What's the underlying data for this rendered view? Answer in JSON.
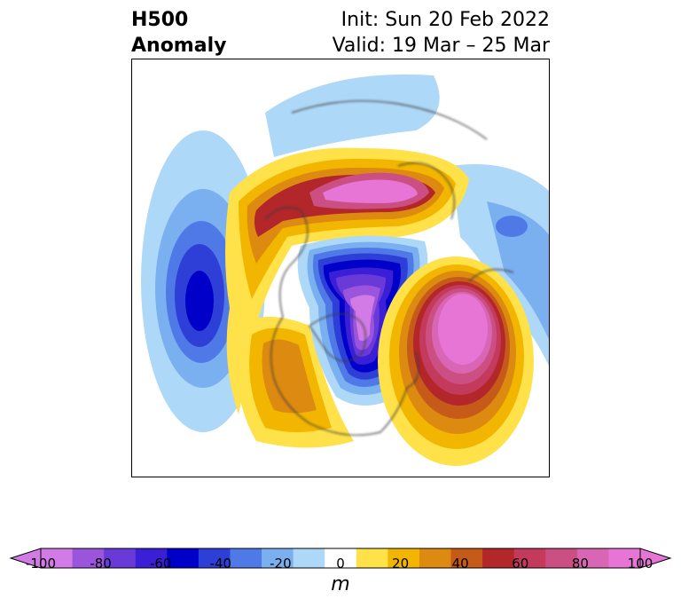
{
  "title": {
    "left_line1": "H500",
    "left_line2": "Anomaly",
    "right_line1": "Init: Sun 20 Feb 2022",
    "right_line2": "Valid: 19 Mar – 25 Mar"
  },
  "colorbar": {
    "unit": "m",
    "ticks": [
      "-100",
      "-80",
      "-60",
      "-40",
      "-20",
      "0",
      "20",
      "40",
      "60",
      "80",
      "100"
    ],
    "levels": [
      -100,
      -90,
      -80,
      -70,
      -60,
      -50,
      -40,
      -30,
      -20,
      -10,
      10,
      20,
      30,
      40,
      50,
      60,
      70,
      80,
      90,
      100
    ],
    "colors": [
      "#d27ae6",
      "#9b55dc",
      "#6a3ad9",
      "#3a1fd6",
      "#0000c8",
      "#2e3fd8",
      "#4f79e6",
      "#7bb0f0",
      "#aed8f8",
      "#ffffff",
      "#ffe14a",
      "#f2b600",
      "#dd8a10",
      "#c65a18",
      "#b3262a",
      "#c43a5c",
      "#cc4f84",
      "#d966b4",
      "#e675d6"
    ]
  },
  "map": {
    "projection": "polar-stereographic",
    "anomalies": [
      {
        "region": "north-pacific-low",
        "sign": "negative",
        "peak": -70
      },
      {
        "region": "alaska-ridge",
        "sign": "positive",
        "peak": 90
      },
      {
        "region": "canada-trough",
        "sign": "negative",
        "peak": -100
      },
      {
        "region": "north-atlantic-ridge",
        "sign": "positive",
        "peak": 100
      },
      {
        "region": "western-us-ridge",
        "sign": "positive",
        "peak": 40
      },
      {
        "region": "siberia-low",
        "sign": "negative",
        "peak": -40
      }
    ]
  }
}
